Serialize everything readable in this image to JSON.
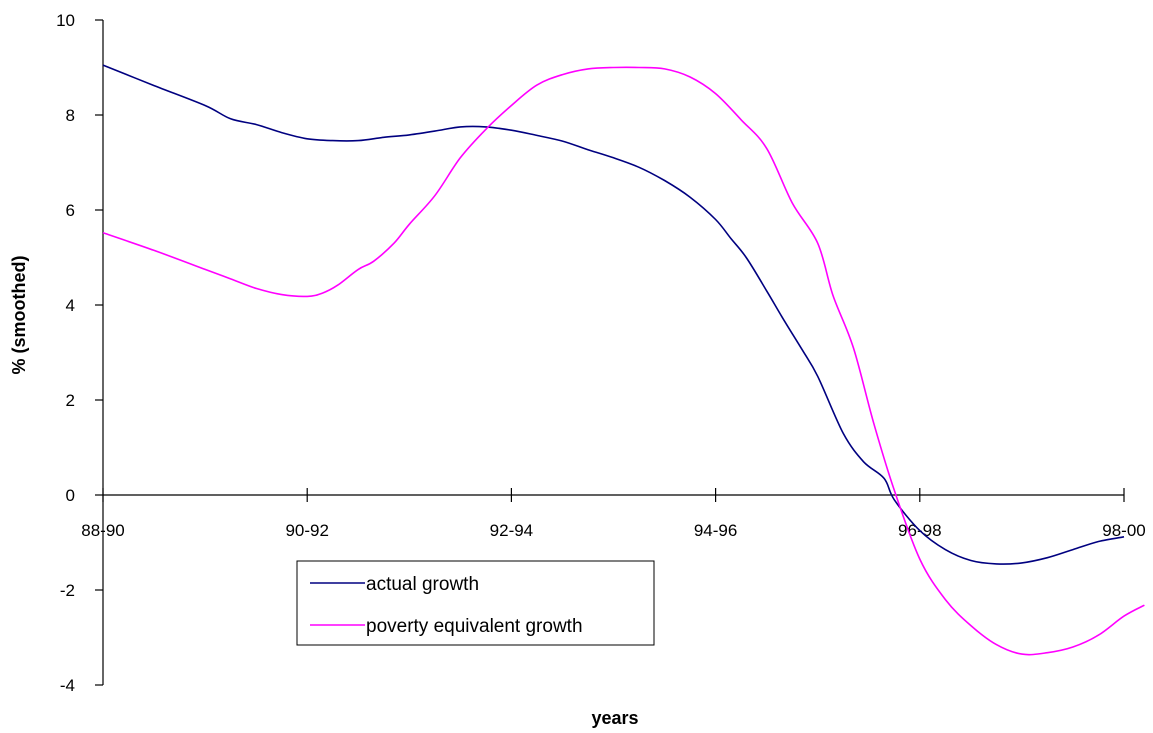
{
  "chart_data": {
    "type": "line",
    "title": "",
    "xlabel": "years",
    "ylabel": "% (smoothed)",
    "ylim": [
      -4,
      10
    ],
    "yticks": [
      -4,
      -2,
      0,
      2,
      4,
      6,
      8,
      10
    ],
    "xlim": [
      0,
      10
    ],
    "xticks": [
      {
        "x": 0,
        "label": "88-90"
      },
      {
        "x": 2,
        "label": "90-92"
      },
      {
        "x": 4,
        "label": "92-94"
      },
      {
        "x": 6,
        "label": "94-96"
      },
      {
        "x": 8,
        "label": "96-98"
      },
      {
        "x": 10,
        "label": "98-00"
      }
    ],
    "grid": false,
    "legend_position": "bottom-left",
    "series": [
      {
        "name": "actual growth",
        "color": "#000080",
        "points": [
          [
            0,
            9.05
          ],
          [
            0.5,
            8.62
          ],
          [
            1,
            8.2
          ],
          [
            1.25,
            7.92
          ],
          [
            1.5,
            7.8
          ],
          [
            1.75,
            7.63
          ],
          [
            2,
            7.5
          ],
          [
            2.25,
            7.46
          ],
          [
            2.5,
            7.46
          ],
          [
            2.75,
            7.53
          ],
          [
            3,
            7.58
          ],
          [
            3.25,
            7.66
          ],
          [
            3.5,
            7.75
          ],
          [
            3.75,
            7.75
          ],
          [
            4,
            7.68
          ],
          [
            4.25,
            7.57
          ],
          [
            4.5,
            7.45
          ],
          [
            4.75,
            7.27
          ],
          [
            5,
            7.1
          ],
          [
            5.25,
            6.9
          ],
          [
            5.5,
            6.62
          ],
          [
            5.75,
            6.27
          ],
          [
            6,
            5.8
          ],
          [
            6.15,
            5.4
          ],
          [
            6.3,
            5.0
          ],
          [
            6.5,
            4.3
          ],
          [
            6.65,
            3.75
          ],
          [
            6.85,
            3.05
          ],
          [
            7,
            2.5
          ],
          [
            7.25,
            1.3
          ],
          [
            7.45,
            0.7
          ],
          [
            7.65,
            0.35
          ],
          [
            7.75,
            -0.1
          ],
          [
            8,
            -0.75
          ],
          [
            8.25,
            -1.15
          ],
          [
            8.5,
            -1.38
          ],
          [
            8.75,
            -1.45
          ],
          [
            9,
            -1.43
          ],
          [
            9.25,
            -1.32
          ],
          [
            9.5,
            -1.15
          ],
          [
            9.75,
            -0.98
          ],
          [
            10,
            -0.88
          ]
        ]
      },
      {
        "name": "poverty equivalent growth",
        "color": "#ff00ff",
        "points": [
          [
            0,
            5.52
          ],
          [
            0.5,
            5.15
          ],
          [
            1,
            4.75
          ],
          [
            1.25,
            4.55
          ],
          [
            1.5,
            4.35
          ],
          [
            1.75,
            4.22
          ],
          [
            2,
            4.18
          ],
          [
            2.15,
            4.25
          ],
          [
            2.3,
            4.42
          ],
          [
            2.5,
            4.75
          ],
          [
            2.65,
            4.92
          ],
          [
            2.85,
            5.3
          ],
          [
            3,
            5.7
          ],
          [
            3.25,
            6.3
          ],
          [
            3.5,
            7.1
          ],
          [
            3.75,
            7.7
          ],
          [
            4,
            8.2
          ],
          [
            4.25,
            8.63
          ],
          [
            4.5,
            8.85
          ],
          [
            4.75,
            8.97
          ],
          [
            5,
            9.0
          ],
          [
            5.25,
            9.0
          ],
          [
            5.5,
            8.97
          ],
          [
            5.75,
            8.8
          ],
          [
            6,
            8.45
          ],
          [
            6.25,
            7.9
          ],
          [
            6.5,
            7.3
          ],
          [
            6.75,
            6.15
          ],
          [
            7,
            5.3
          ],
          [
            7.15,
            4.2
          ],
          [
            7.35,
            3.1
          ],
          [
            7.55,
            1.5
          ],
          [
            7.75,
            0.1
          ],
          [
            8,
            -1.35
          ],
          [
            8.25,
            -2.2
          ],
          [
            8.5,
            -2.75
          ],
          [
            8.75,
            -3.15
          ],
          [
            9,
            -3.35
          ],
          [
            9.25,
            -3.32
          ],
          [
            9.5,
            -3.2
          ],
          [
            9.75,
            -2.95
          ],
          [
            10,
            -2.55
          ],
          [
            10.2,
            -2.32
          ]
        ]
      }
    ]
  }
}
